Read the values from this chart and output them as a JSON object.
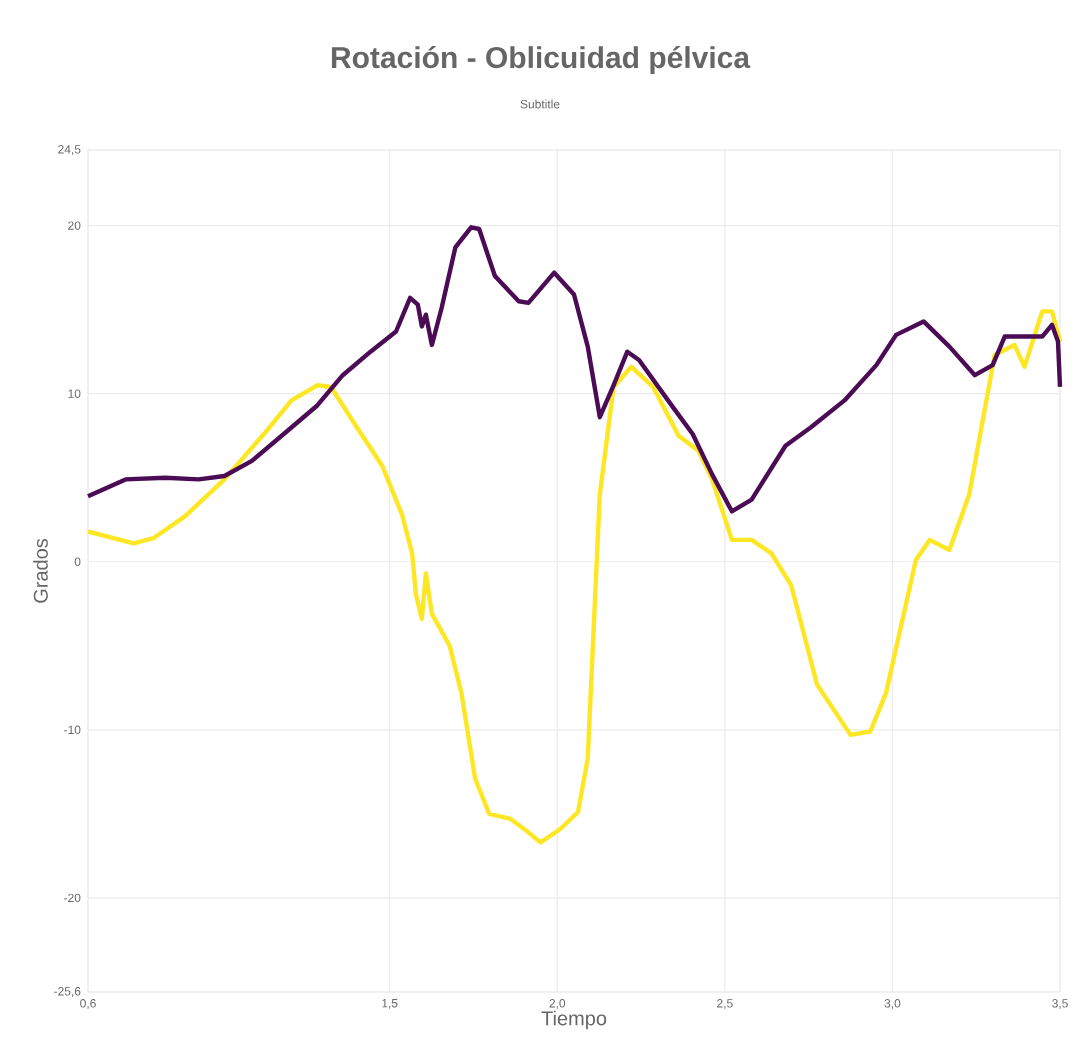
{
  "chart_data": {
    "type": "line",
    "title": "Rotación - Oblicuidad pélvica",
    "subtitle": "Subtitle",
    "xlabel": "Tiempo",
    "ylabel": "Grados",
    "xlim": [
      0.6,
      3.5
    ],
    "ylim": [
      -25.6,
      24.5
    ],
    "xticks": [
      {
        "value": 0.6,
        "label": "0,6"
      },
      {
        "value": 1.5,
        "label": "1,5"
      },
      {
        "value": 2.0,
        "label": "2,0"
      },
      {
        "value": 2.5,
        "label": "2,5"
      },
      {
        "value": 3.0,
        "label": "3,0"
      },
      {
        "value": 3.5,
        "label": "3,5"
      }
    ],
    "yticks": [
      {
        "value": -25.6,
        "label": "-25,6"
      },
      -20,
      -10,
      0,
      10,
      20,
      {
        "value": 24.5,
        "label": "24,5"
      }
    ],
    "grid": true,
    "marker": "none",
    "line_style": "solid",
    "series": [
      {
        "color": "#fde725",
        "x": [
          0.6,
          0.736,
          0.795,
          0.889,
          1.007,
          1.125,
          1.207,
          1.284,
          1.325,
          1.402,
          1.478,
          1.537,
          1.567,
          1.578,
          1.596,
          1.608,
          1.626,
          1.679,
          1.714,
          1.755,
          1.797,
          1.861,
          1.914,
          1.95,
          2.009,
          2.062,
          2.091,
          2.109,
          2.127,
          2.168,
          2.221,
          2.286,
          2.362,
          2.421,
          2.462,
          2.521,
          2.58,
          2.639,
          2.698,
          2.775,
          2.875,
          2.934,
          2.981,
          3.07,
          3.111,
          3.17,
          3.229,
          3.305,
          3.364,
          3.394,
          3.447,
          3.476,
          3.5
        ],
        "values": [
          1.8,
          1.1,
          1.4,
          2.7,
          4.9,
          7.6,
          9.6,
          10.5,
          10.4,
          8.0,
          5.7,
          2.8,
          0.5,
          -1.9,
          -3.4,
          -0.7,
          -3.1,
          -5.0,
          -7.8,
          -12.9,
          -15.0,
          -15.3,
          -16.1,
          -16.7,
          -15.9,
          -14.9,
          -11.7,
          -3.8,
          4.0,
          10.4,
          11.6,
          10.4,
          7.5,
          6.6,
          4.9,
          1.3,
          1.3,
          0.5,
          -1.4,
          -7.3,
          -10.3,
          -10.1,
          -7.8,
          0.1,
          1.3,
          0.7,
          4.0,
          12.3,
          12.9,
          11.6,
          14.9,
          14.9,
          13.1
        ]
      },
      {
        "color": "#4b0c55",
        "x": [
          0.6,
          0.712,
          0.83,
          0.93,
          1.007,
          1.089,
          1.184,
          1.284,
          1.36,
          1.443,
          1.519,
          1.561,
          1.584,
          1.596,
          1.608,
          1.626,
          1.655,
          1.696,
          1.743,
          1.767,
          1.814,
          1.885,
          1.914,
          1.991,
          2.05,
          2.091,
          2.127,
          2.168,
          2.209,
          2.244,
          2.345,
          2.404,
          2.462,
          2.521,
          2.58,
          2.681,
          2.757,
          2.857,
          2.952,
          3.011,
          3.093,
          3.17,
          3.246,
          3.299,
          3.335,
          3.388,
          3.447,
          3.476,
          3.494,
          3.5
        ],
        "values": [
          3.9,
          4.9,
          5.0,
          4.9,
          5.1,
          6.0,
          7.6,
          9.3,
          11.1,
          12.5,
          13.7,
          15.7,
          15.3,
          14.0,
          14.7,
          12.9,
          15.1,
          18.7,
          19.9,
          19.8,
          17.0,
          15.5,
          15.4,
          17.2,
          15.9,
          12.8,
          8.6,
          10.5,
          12.5,
          12.0,
          9.2,
          7.6,
          5.2,
          3.0,
          3.7,
          6.9,
          8.0,
          9.6,
          11.7,
          13.5,
          14.3,
          12.8,
          11.1,
          11.7,
          13.4,
          13.4,
          13.4,
          14.1,
          13.1,
          10.4
        ]
      }
    ]
  }
}
